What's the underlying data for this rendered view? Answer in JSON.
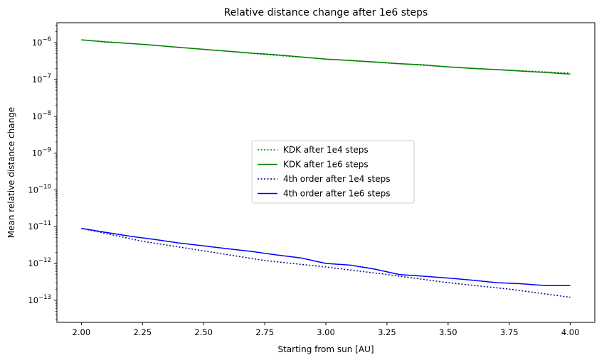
{
  "chart_data": {
    "type": "line",
    "title": "Relative distance change after 1e6 steps",
    "xlabel": "Starting from sun [AU]",
    "ylabel": "Mean relative distance change",
    "xlim": [
      1.9,
      4.1
    ],
    "ylim": [
      2.5e-14,
      3.5e-06
    ],
    "yscale": "log",
    "grid": false,
    "legend_position": "center",
    "x_ticks": [
      2.0,
      2.25,
      2.5,
      2.75,
      3.0,
      3.25,
      3.5,
      3.75,
      4.0
    ],
    "x_tick_labels": [
      "2.00",
      "2.25",
      "2.50",
      "2.75",
      "3.00",
      "3.25",
      "3.50",
      "3.75",
      "4.00"
    ],
    "y_ticks": [
      {
        "base": "10",
        "exp": "−13",
        "value": 1e-13
      },
      {
        "base": "10",
        "exp": "−12",
        "value": 1e-12
      },
      {
        "base": "10",
        "exp": "−11",
        "value": 1e-11
      },
      {
        "base": "10",
        "exp": "−10",
        "value": 1e-10
      },
      {
        "base": "10",
        "exp": "−9",
        "value": 1e-09
      },
      {
        "base": "10",
        "exp": "−8",
        "value": 1e-08
      },
      {
        "base": "10",
        "exp": "−7",
        "value": 1e-07
      },
      {
        "base": "10",
        "exp": "−6",
        "value": 1e-06
      }
    ],
    "series": [
      {
        "name": "KDK after 1e4 steps",
        "color": "#008000",
        "style": "dotted",
        "x": [
          2.0,
          2.25,
          2.5,
          2.75,
          3.0,
          3.25,
          3.5,
          3.75,
          4.0
        ],
        "values": [
          1.2e-06,
          9e-07,
          6.6e-07,
          4.8e-07,
          3.6e-07,
          2.8e-07,
          2.2e-07,
          1.8e-07,
          1.5e-07
        ]
      },
      {
        "name": "KDK after 1e6 steps",
        "color": "#008000",
        "style": "solid",
        "x": [
          2.0,
          2.1,
          2.2,
          2.3,
          2.4,
          2.5,
          2.6,
          2.7,
          2.8,
          2.9,
          3.0,
          3.1,
          3.2,
          3.3,
          3.4,
          3.5,
          3.6,
          3.7,
          3.8,
          3.9,
          4.0
        ],
        "values": [
          1.2e-06,
          1.05e-06,
          9.5e-07,
          8.5e-07,
          7.5e-07,
          6.6e-07,
          5.9e-07,
          5.2e-07,
          4.7e-07,
          4.1e-07,
          3.6e-07,
          3.3e-07,
          3e-07,
          2.7e-07,
          2.5e-07,
          2.2e-07,
          2e-07,
          1.85e-07,
          1.7e-07,
          1.55e-07,
          1.4e-07
        ]
      },
      {
        "name": "4th order after 1e4 steps",
        "color": "#00008b",
        "style": "dotted",
        "x": [
          2.0,
          2.25,
          2.5,
          2.75,
          3.0,
          3.25,
          3.5,
          3.75,
          4.0
        ],
        "values": [
          9e-12,
          4e-12,
          2.2e-12,
          1.2e-12,
          8e-13,
          5e-13,
          3e-13,
          2e-13,
          1.2e-13
        ]
      },
      {
        "name": "4th order after 1e6 steps",
        "color": "#0000ff",
        "style": "solid",
        "x": [
          2.0,
          2.1,
          2.2,
          2.3,
          2.4,
          2.5,
          2.6,
          2.7,
          2.8,
          2.9,
          3.0,
          3.1,
          3.2,
          3.3,
          3.4,
          3.5,
          3.6,
          3.7,
          3.8,
          3.9,
          4.0
        ],
        "values": [
          9e-12,
          7e-12,
          5.5e-12,
          4.5e-12,
          3.6e-12,
          3e-12,
          2.5e-12,
          2.1e-12,
          1.7e-12,
          1.4e-12,
          1e-12,
          9e-13,
          7e-13,
          5e-13,
          4.5e-13,
          4e-13,
          3.5e-13,
          3e-13,
          2.8e-13,
          2.5e-13,
          2.5e-13
        ]
      }
    ]
  }
}
